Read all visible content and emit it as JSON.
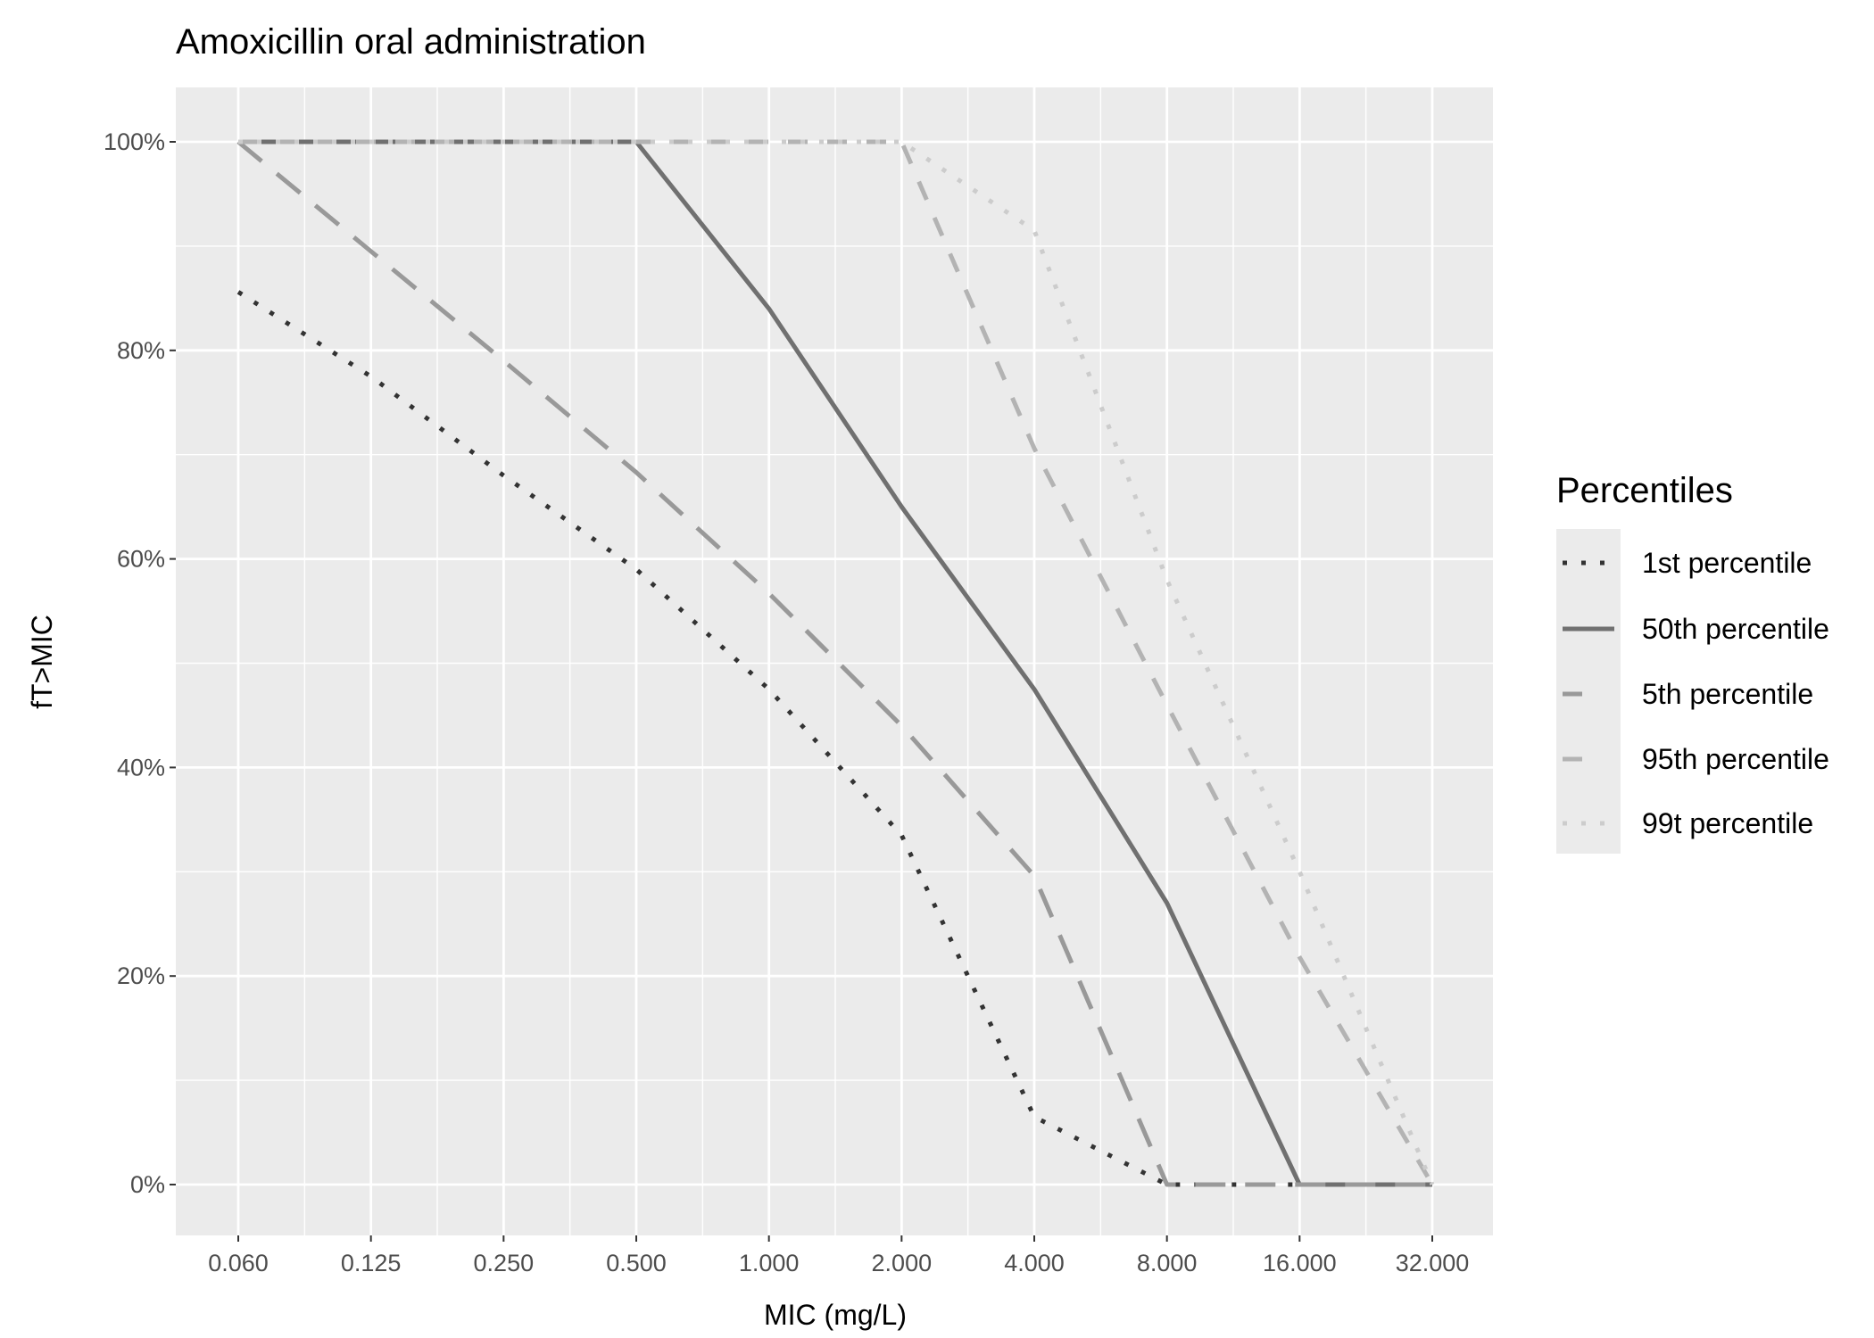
{
  "chart_data": {
    "type": "line",
    "title": "Amoxicillin oral administration",
    "xlabel": "MIC (mg/L)",
    "ylabel": "fT>MIC",
    "x_scale": "log2 (categorical breaks)",
    "x": [
      "0.060",
      "0.125",
      "0.250",
      "0.500",
      "1.000",
      "2.000",
      "4.000",
      "8.000",
      "16.000",
      "32.000"
    ],
    "ylim": [
      0,
      100
    ],
    "y_ticks": [
      "0%",
      "20%",
      "40%",
      "60%",
      "80%",
      "100%"
    ],
    "y_tick_values": [
      0,
      20,
      40,
      60,
      80,
      100
    ],
    "grid": true,
    "legend": {
      "title": "Percentiles",
      "placement": "right"
    },
    "series": [
      {
        "name": "1st percentile",
        "style": "dotted",
        "color": "#333333",
        "values": [
          85.6,
          77.5,
          68,
          59,
          47.5,
          33.5,
          6.5,
          0,
          0,
          0
        ]
      },
      {
        "name": "50th percentile",
        "style": "solid",
        "color": "#707070",
        "values": [
          100,
          100,
          100,
          100,
          84,
          65,
          47.5,
          27,
          0,
          0
        ]
      },
      {
        "name": "5th percentile",
        "style": "longdash",
        "color": "#999999",
        "values": [
          100,
          89.5,
          79,
          68.3,
          56.7,
          44,
          29.6,
          0,
          0,
          0
        ]
      },
      {
        "name": "95th percentile",
        "style": "dashed",
        "color": "#b3b3b3",
        "values": [
          100,
          100,
          100,
          100,
          100,
          100,
          70.6,
          46,
          21.8,
          0
        ]
      },
      {
        "name": "99t percentile",
        "style": "dotted",
        "color": "#cccccc",
        "values": [
          100,
          100,
          100,
          100,
          100,
          100,
          91.5,
          58,
          30,
          0
        ]
      }
    ]
  }
}
